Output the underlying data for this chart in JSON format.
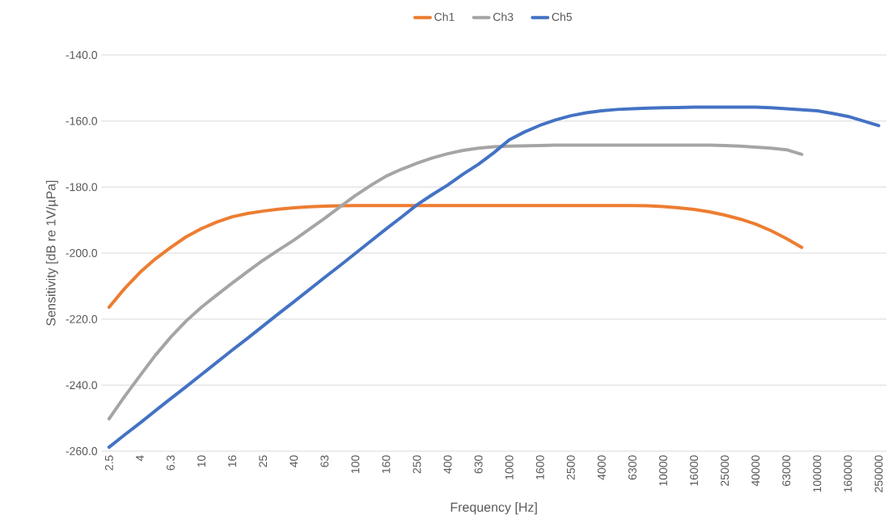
{
  "chart_data": {
    "type": "line",
    "xlabel": "Frequency [Hz]",
    "ylabel": "Sensitivity [dB re 1V/µPa]",
    "categories": [
      "2.5",
      null,
      "4",
      null,
      "6.3",
      null,
      "10",
      null,
      "16",
      null,
      "25",
      null,
      "40",
      null,
      "63",
      null,
      "100",
      null,
      "160",
      null,
      "250",
      null,
      "400",
      null,
      "630",
      null,
      "1000",
      null,
      "1600",
      null,
      "2500",
      null,
      "4000",
      null,
      "6300",
      null,
      "10000",
      null,
      "16000",
      null,
      "25000",
      null,
      "40000",
      null,
      "63000",
      null,
      "100000",
      null,
      "160000",
      null,
      "250000"
    ],
    "ylim": [
      -260,
      -140
    ],
    "yticks": [
      {
        "value": -260,
        "label": "-260.0"
      },
      {
        "value": -240,
        "label": "-240.0"
      },
      {
        "value": -220,
        "label": "-220.0"
      },
      {
        "value": -200,
        "label": "-200.0"
      },
      {
        "value": -180,
        "label": "-180.0"
      },
      {
        "value": -160,
        "label": "-160.0"
      },
      {
        "value": -140,
        "label": "-140.0"
      }
    ],
    "grid": "y",
    "legend": "top",
    "marker": "none",
    "line_style": "solid",
    "series": [
      {
        "name": "Ch1",
        "color": "#ed7d31",
        "values": [
          -216.4,
          -210.8,
          -205.9,
          -201.8,
          -198.3,
          -195.1,
          -192.6,
          -190.6,
          -189.0,
          -188.0,
          -187.3,
          -186.7,
          -186.3,
          -186.0,
          -185.8,
          -185.7,
          -185.6,
          -185.6,
          -185.6,
          -185.6,
          -185.6,
          -185.6,
          -185.6,
          -185.6,
          -185.6,
          -185.6,
          -185.6,
          -185.6,
          -185.6,
          -185.6,
          -185.6,
          -185.6,
          -185.6,
          -185.6,
          -185.6,
          -185.7,
          -185.9,
          -186.3,
          -186.8,
          -187.5,
          -188.5,
          -189.7,
          -191.2,
          -193.2,
          -195.6,
          -198.3,
          null,
          null,
          null,
          null,
          null
        ]
      },
      {
        "name": "Ch3",
        "color": "#a5a5a5",
        "values": [
          -250.2,
          -243.5,
          -237.2,
          -231.0,
          -225.5,
          -220.6,
          -216.4,
          -212.7,
          -209.1,
          -205.6,
          -202.2,
          -199.1,
          -196.1,
          -192.8,
          -189.5,
          -186.0,
          -182.6,
          -179.5,
          -176.7,
          -174.6,
          -172.8,
          -171.2,
          -169.9,
          -168.9,
          -168.2,
          -167.8,
          -167.6,
          -167.5,
          -167.4,
          -167.3,
          -167.3,
          -167.3,
          -167.3,
          -167.3,
          -167.3,
          -167.3,
          -167.3,
          -167.3,
          -167.3,
          -167.3,
          -167.4,
          -167.6,
          -167.9,
          -168.2,
          -168.7,
          -170.1,
          null,
          null,
          null,
          null,
          null
        ]
      },
      {
        "name": "Ch5",
        "color": "#4472c4",
        "values": [
          -258.8,
          -255.1,
          -251.5,
          -247.8,
          -244.1,
          -240.5,
          -236.8,
          -233.1,
          -229.4,
          -225.8,
          -222.1,
          -218.4,
          -214.8,
          -211.1,
          -207.4,
          -203.8,
          -200.1,
          -196.4,
          -192.7,
          -189.1,
          -185.4,
          -182.3,
          -179.4,
          -176.1,
          -173.1,
          -169.6,
          -165.7,
          -163.3,
          -161.3,
          -159.7,
          -158.4,
          -157.5,
          -156.9,
          -156.5,
          -156.3,
          -156.1,
          -156.0,
          -155.9,
          -155.8,
          -155.8,
          -155.8,
          -155.8,
          -155.8,
          -156.0,
          -156.3,
          -156.6,
          -156.9,
          -157.7,
          -158.6,
          -160.0,
          -161.4
        ]
      }
    ]
  }
}
